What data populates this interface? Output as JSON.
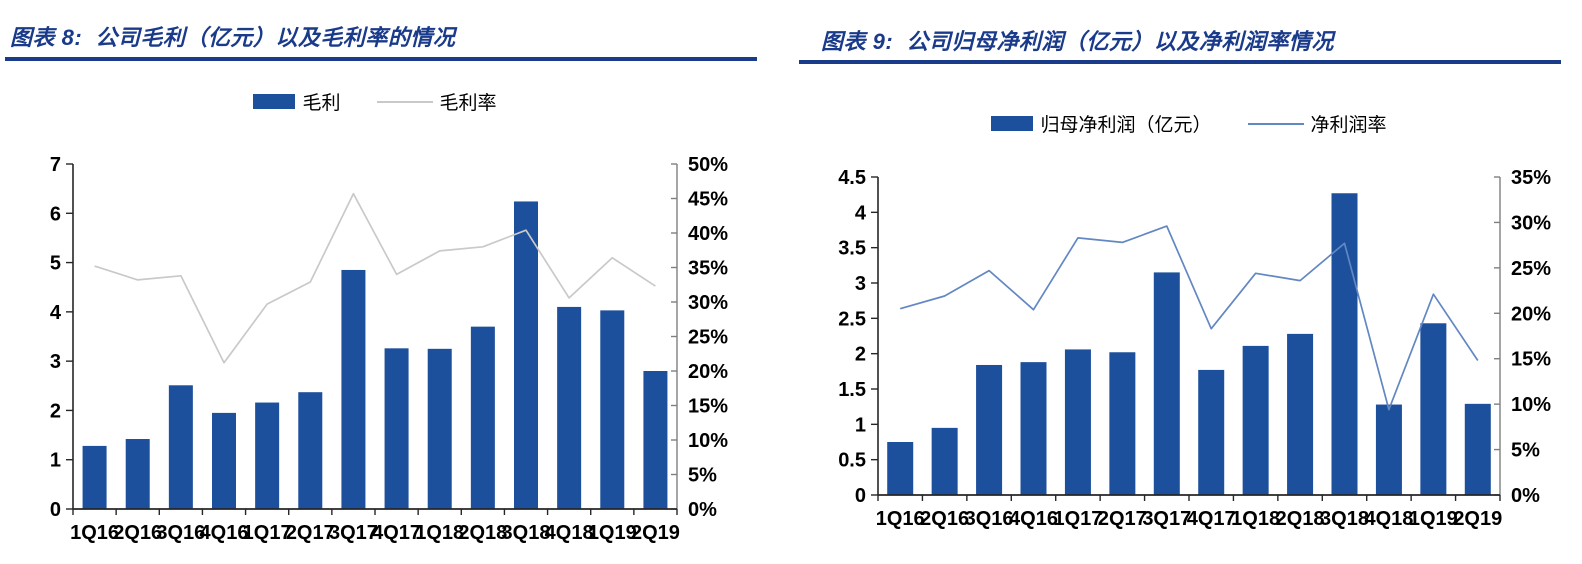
{
  "page": {
    "background": "#ffffff",
    "accent_navy": "#1a3a8a",
    "bar_color": "#1c4f9c"
  },
  "chart_data": [
    {
      "type": "bar+line",
      "title": "图表 8:  公司毛利（亿元）以及毛利率的情况",
      "legend": {
        "bar_label": "毛利",
        "line_label": "毛利率"
      },
      "categories": [
        "1Q16",
        "2Q16",
        "3Q16",
        "4Q16",
        "1Q17",
        "2Q17",
        "3Q17",
        "4Q17",
        "1Q18",
        "2Q18",
        "3Q18",
        "4Q18",
        "1Q19",
        "2Q19"
      ],
      "series": [
        {
          "name": "毛利",
          "type": "bar",
          "axis": "left",
          "unit": "亿元",
          "values": [
            1.28,
            1.42,
            2.51,
            1.95,
            2.16,
            2.37,
            4.85,
            3.26,
            3.25,
            3.7,
            6.24,
            4.1,
            4.03,
            2.8
          ]
        },
        {
          "name": "毛利率",
          "type": "line",
          "axis": "right",
          "unit": "%",
          "values": [
            35.2,
            33.2,
            33.8,
            21.2,
            29.7,
            32.9,
            45.7,
            34.0,
            37.4,
            38.0,
            40.4,
            30.6,
            36.4,
            32.3
          ]
        }
      ],
      "y_left": {
        "min": 0,
        "max": 7,
        "step": 1,
        "tick_labels": [
          "0",
          "1",
          "2",
          "3",
          "4",
          "5",
          "6",
          "7"
        ]
      },
      "y_right": {
        "min": 0,
        "max": 50,
        "step": 5,
        "tick_labels": [
          "0%",
          "5%",
          "10%",
          "15%",
          "20%",
          "25%",
          "30%",
          "35%",
          "40%",
          "45%",
          "50%"
        ]
      },
      "colors": {
        "bar": "#1c4f9c",
        "line": "#c9c9c9"
      },
      "legend_position": "top",
      "grid": false
    },
    {
      "type": "bar+line",
      "title": "图表 9:  公司归母净利润（亿元）以及净利润率情况",
      "legend": {
        "bar_label": "归母净利润（亿元）",
        "line_label": "净利润率"
      },
      "categories": [
        "1Q16",
        "2Q16",
        "3Q16",
        "4Q16",
        "1Q17",
        "2Q17",
        "3Q17",
        "4Q17",
        "1Q18",
        "2Q18",
        "3Q18",
        "4Q18",
        "1Q19",
        "2Q19"
      ],
      "series": [
        {
          "name": "归母净利润（亿元）",
          "type": "bar",
          "axis": "left",
          "unit": "亿元",
          "values": [
            0.75,
            0.95,
            1.84,
            1.88,
            2.06,
            2.02,
            3.15,
            1.77,
            2.11,
            2.28,
            4.27,
            1.28,
            2.43,
            1.29
          ]
        },
        {
          "name": "净利润率",
          "type": "line",
          "axis": "right",
          "unit": "%",
          "values": [
            20.5,
            21.9,
            24.7,
            20.4,
            28.3,
            27.8,
            29.6,
            18.3,
            24.4,
            23.6,
            27.7,
            9.4,
            22.1,
            14.8
          ]
        }
      ],
      "y_left": {
        "min": 0,
        "max": 4.5,
        "step": 0.5,
        "tick_labels": [
          "0",
          "0.5",
          "1",
          "1.5",
          "2",
          "2.5",
          "3",
          "3.5",
          "4",
          "4.5"
        ]
      },
      "y_right": {
        "min": 0,
        "max": 35,
        "step": 5,
        "tick_labels": [
          "0%",
          "5%",
          "10%",
          "15%",
          "20%",
          "25%",
          "30%",
          "35%"
        ]
      },
      "colors": {
        "bar": "#1c4f9c",
        "line": "#6287c2"
      },
      "legend_position": "top",
      "grid": false
    }
  ]
}
